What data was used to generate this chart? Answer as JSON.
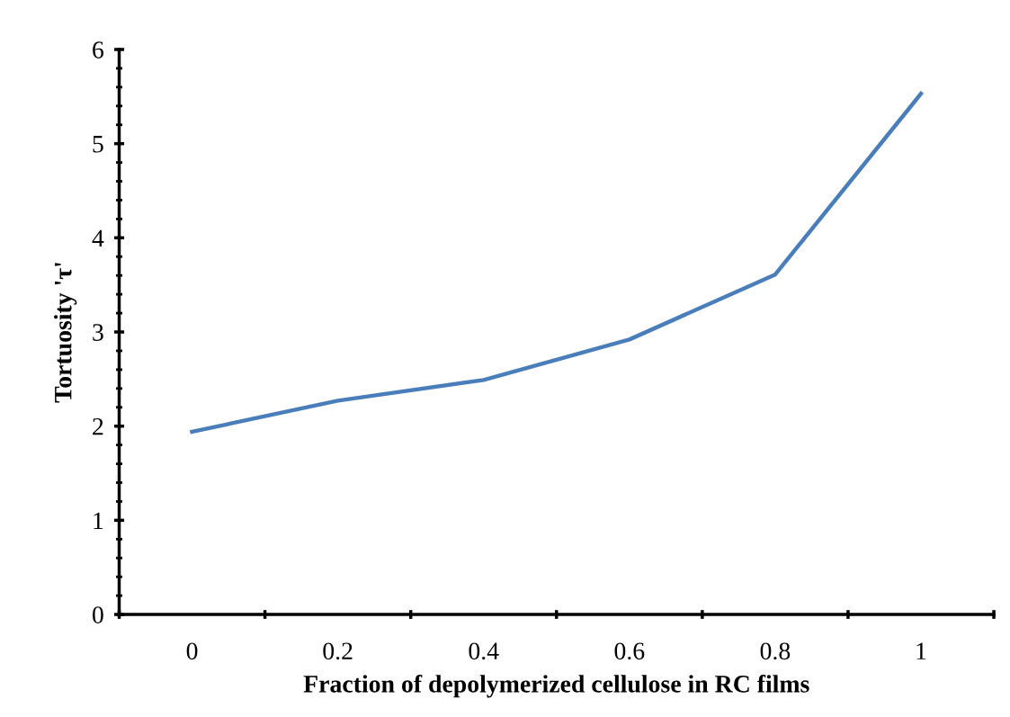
{
  "chart_data": {
    "type": "line",
    "xlabel": "Fraction of depolymerized cellulose in RC films",
    "ylabel": "Tortuosity 'τ'",
    "categories": [
      "0",
      "0.2",
      "0.4",
      "0.6",
      "0.8",
      "1"
    ],
    "series": [
      {
        "color": "#4a7ebb",
        "values": [
          1.94,
          2.27,
          2.49,
          2.92,
          3.61,
          5.53
        ]
      }
    ],
    "ylim": [
      0,
      6
    ],
    "yticks": [
      0,
      1,
      2,
      3,
      4,
      5,
      6
    ],
    "grid": false,
    "legend": false,
    "marker": "none",
    "line_style": "solid"
  }
}
